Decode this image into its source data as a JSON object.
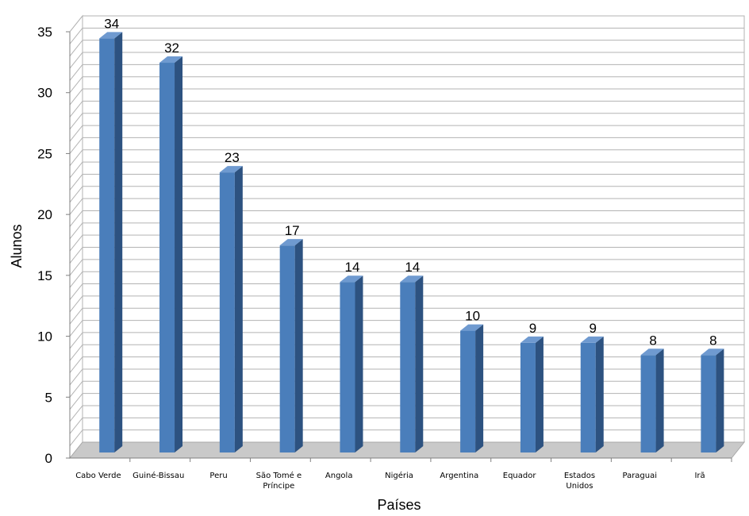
{
  "chart_data": {
    "type": "bar",
    "title": "",
    "xlabel": "Países",
    "ylabel": "Alunos",
    "ylim": [
      0,
      35
    ],
    "yticks": [
      0,
      5,
      10,
      15,
      20,
      25,
      30,
      35
    ],
    "grid": true,
    "categories": [
      [
        "Cabo Verde"
      ],
      [
        "Guiné-Bissau"
      ],
      [
        "Peru"
      ],
      [
        "São Tomé e",
        "Príncipe"
      ],
      [
        "Angola"
      ],
      [
        "Nigéria"
      ],
      [
        "Argentina"
      ],
      [
        "Equador"
      ],
      [
        "Estados",
        "Unidos"
      ],
      [
        "Paraguai"
      ],
      [
        "Irã"
      ]
    ],
    "values": [
      34,
      32,
      23,
      17,
      14,
      14,
      10,
      9,
      9,
      8,
      8
    ],
    "colors": {
      "bar_front": "#4a7ebb",
      "bar_side": "#2d5280",
      "bar_top": "#6f9ad0",
      "grid": "#b3b3b3",
      "wall": "#ffffff",
      "floor": "#c9c9c9"
    }
  }
}
